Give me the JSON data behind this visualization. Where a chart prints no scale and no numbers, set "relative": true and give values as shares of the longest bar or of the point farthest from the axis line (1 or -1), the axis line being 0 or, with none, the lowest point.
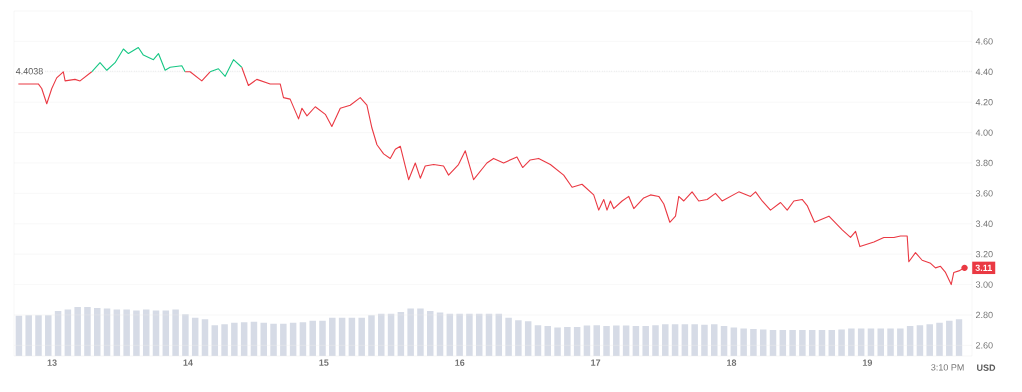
{
  "chart_data": [
    {
      "type": "line",
      "ylabel": "USD",
      "grid": "y",
      "x": [
        12.752,
        12.862,
        12.899,
        12.924,
        12.961,
        12.998,
        13.034,
        13.083,
        13.096,
        13.169,
        13.206,
        13.292,
        13.353,
        13.403,
        13.464,
        13.525,
        13.562,
        13.635,
        13.672,
        13.746,
        13.783,
        13.832,
        13.869,
        13.955,
        13.979,
        14.016,
        14.102,
        14.163,
        14.224,
        14.274,
        14.335,
        14.396,
        14.445,
        14.507,
        14.605,
        14.679,
        14.703,
        14.752,
        14.814,
        14.839,
        14.876,
        14.937,
        15.011,
        15.059,
        15.121,
        15.194,
        15.268,
        15.317,
        15.354,
        15.391,
        15.44,
        15.489,
        15.526,
        15.563,
        15.624,
        15.673,
        15.71,
        15.746,
        15.808,
        15.881,
        15.918,
        15.991,
        16.041,
        16.102,
        16.2,
        16.249,
        16.323,
        16.421,
        16.463,
        16.519,
        16.581,
        16.667,
        16.765,
        16.827,
        16.9,
        16.986,
        17.023,
        17.06,
        17.084,
        17.109,
        17.133,
        17.195,
        17.244,
        17.281,
        17.354,
        17.404,
        17.465,
        17.502,
        17.546,
        17.588,
        17.612,
        17.649,
        17.71,
        17.759,
        17.821,
        17.882,
        17.931,
        18.054,
        18.14,
        18.177,
        18.226,
        18.287,
        18.361,
        18.41,
        18.459,
        18.52,
        18.557,
        18.611,
        18.717,
        18.815,
        18.876,
        18.913,
        18.945,
        19.048,
        19.121,
        19.195,
        19.244,
        19.293,
        19.305,
        19.354,
        19.403,
        19.465,
        19.501,
        19.538,
        19.575,
        19.617,
        19.636,
        19.673,
        19.715
      ],
      "series": [
        {
          "color": "#ea3943",
          "values": [
            4.32,
            4.32,
            4.32,
            4.29,
            4.19,
            4.29,
            4.36,
            4.4,
            4.34,
            4.35,
            4.34,
            4.4,
            null,
            null,
            null,
            null,
            null,
            null,
            null,
            null,
            null,
            null,
            null,
            null,
            4.4,
            4.4,
            4.34,
            4.4,
            null,
            null,
            null,
            4.43,
            4.31,
            4.35,
            4.32,
            4.32,
            4.23,
            4.22,
            4.09,
            4.16,
            4.11,
            4.17,
            4.12,
            4.04,
            4.16,
            4.18,
            4.23,
            4.18,
            4.03,
            3.92,
            3.86,
            3.83,
            3.89,
            3.91,
            3.69,
            3.8,
            3.7,
            3.78,
            3.79,
            3.78,
            3.72,
            3.79,
            3.88,
            3.69,
            3.8,
            3.83,
            3.8,
            3.84,
            3.77,
            3.82,
            3.83,
            3.79,
            3.72,
            3.64,
            3.66,
            3.59,
            3.49,
            3.56,
            3.49,
            3.55,
            3.5,
            3.55,
            3.58,
            3.5,
            3.57,
            3.59,
            3.58,
            3.53,
            3.41,
            3.45,
            3.58,
            3.55,
            3.61,
            3.55,
            3.56,
            3.6,
            3.55,
            3.61,
            3.58,
            3.61,
            3.55,
            3.49,
            3.54,
            3.49,
            3.55,
            3.56,
            3.52,
            3.41,
            3.45,
            3.36,
            3.31,
            3.35,
            3.25,
            3.28,
            3.31,
            3.31,
            3.32,
            3.32,
            3.15,
            3.21,
            3.16,
            3.14,
            3.11,
            3.12,
            3.08,
            3.0,
            3.08,
            3.09,
            3.11
          ]
        },
        {
          "color": "#16c784",
          "x": [
            13.292,
            13.353,
            13.403,
            13.464,
            13.525,
            13.562,
            13.635,
            13.672,
            13.746,
            13.783,
            13.832,
            13.869,
            13.955,
            13.979,
            14.016,
            14.102,
            14.163,
            14.224,
            14.274,
            14.335,
            14.396
          ],
          "values": [
            4.4,
            4.46,
            4.41,
            4.46,
            4.55,
            4.52,
            4.56,
            4.51,
            4.48,
            4.52,
            4.41,
            4.43,
            4.44,
            4.4,
            null,
            null,
            4.4,
            4.42,
            4.37,
            4.48,
            4.43
          ]
        }
      ],
      "xlim": [
        12.72,
        19.77
      ],
      "ylim": [
        2.53,
        4.8
      ],
      "xticks": [
        13,
        14,
        15,
        16,
        17,
        18,
        19
      ],
      "yticks": [
        {
          "value": 2.6,
          "label": "2.60"
        },
        {
          "value": 2.8,
          "label": "2.80"
        },
        {
          "value": 3.0,
          "label": "3.00"
        },
        {
          "value": 3.2,
          "label": "3.20"
        },
        {
          "value": 3.4,
          "label": "3.40"
        },
        {
          "value": 3.6,
          "label": "3.60"
        },
        {
          "value": 3.8,
          "label": "3.80"
        },
        {
          "value": 4.0,
          "label": "4.00"
        },
        {
          "value": 4.2,
          "label": "4.20"
        },
        {
          "value": 4.4,
          "label": "4.40"
        },
        {
          "value": 4.6,
          "label": "4.60"
        }
      ],
      "ref_lines": [
        {
          "axis": "y",
          "value": 4.4038,
          "label": "4.4038",
          "color": "#9aa0ab",
          "line_style": "dotted"
        }
      ],
      "annotations": [
        {
          "text": "3.11",
          "x": 19.715,
          "y": 3.11
        },
        "3:10 PM"
      ]
    },
    {
      "type": "bar",
      "relative": true,
      "color": "#d6dbe6",
      "categories": [
        null,
        null,
        null,
        null,
        null,
        null,
        null,
        null,
        null,
        null,
        null,
        null,
        null,
        null,
        null,
        null,
        null,
        null,
        null,
        null,
        null,
        null,
        null,
        null,
        null,
        null,
        null,
        null,
        null,
        null,
        null,
        null,
        null,
        null,
        null,
        null,
        null,
        null,
        null,
        null,
        null,
        null,
        null,
        null,
        null,
        null,
        null,
        null,
        null,
        null,
        null,
        null,
        null,
        null,
        null,
        null,
        null,
        null,
        null,
        null,
        null,
        null,
        null,
        null,
        null,
        null,
        null,
        null,
        null,
        null,
        null,
        null,
        null,
        null,
        null,
        null,
        null,
        null,
        null,
        null,
        null,
        null,
        null,
        null,
        null,
        null,
        null,
        null,
        null,
        null,
        null,
        null,
        null,
        null,
        null,
        null,
        null
      ],
      "values": [
        0.82,
        0.83,
        0.83,
        0.83,
        0.92,
        0.95,
        1.0,
        1.0,
        0.98,
        0.97,
        0.95,
        0.95,
        0.93,
        0.95,
        0.93,
        0.93,
        0.95,
        0.85,
        0.78,
        0.75,
        0.63,
        0.65,
        0.68,
        0.69,
        0.7,
        0.68,
        0.66,
        0.66,
        0.68,
        0.69,
        0.72,
        0.72,
        0.78,
        0.78,
        0.78,
        0.78,
        0.83,
        0.86,
        0.86,
        0.9,
        0.97,
        0.97,
        0.92,
        0.89,
        0.86,
        0.86,
        0.86,
        0.86,
        0.86,
        0.86,
        0.78,
        0.73,
        0.71,
        0.63,
        0.61,
        0.58,
        0.59,
        0.59,
        0.62,
        0.63,
        0.61,
        0.62,
        0.62,
        0.61,
        0.61,
        0.63,
        0.65,
        0.65,
        0.65,
        0.65,
        0.64,
        0.65,
        0.61,
        0.58,
        0.56,
        0.55,
        0.54,
        0.53,
        0.53,
        0.53,
        0.53,
        0.53,
        0.53,
        0.53,
        0.54,
        0.56,
        0.56,
        0.56,
        0.56,
        0.56,
        0.56,
        0.61,
        0.63,
        0.65,
        0.68,
        0.72,
        0.75
      ]
    }
  ]
}
